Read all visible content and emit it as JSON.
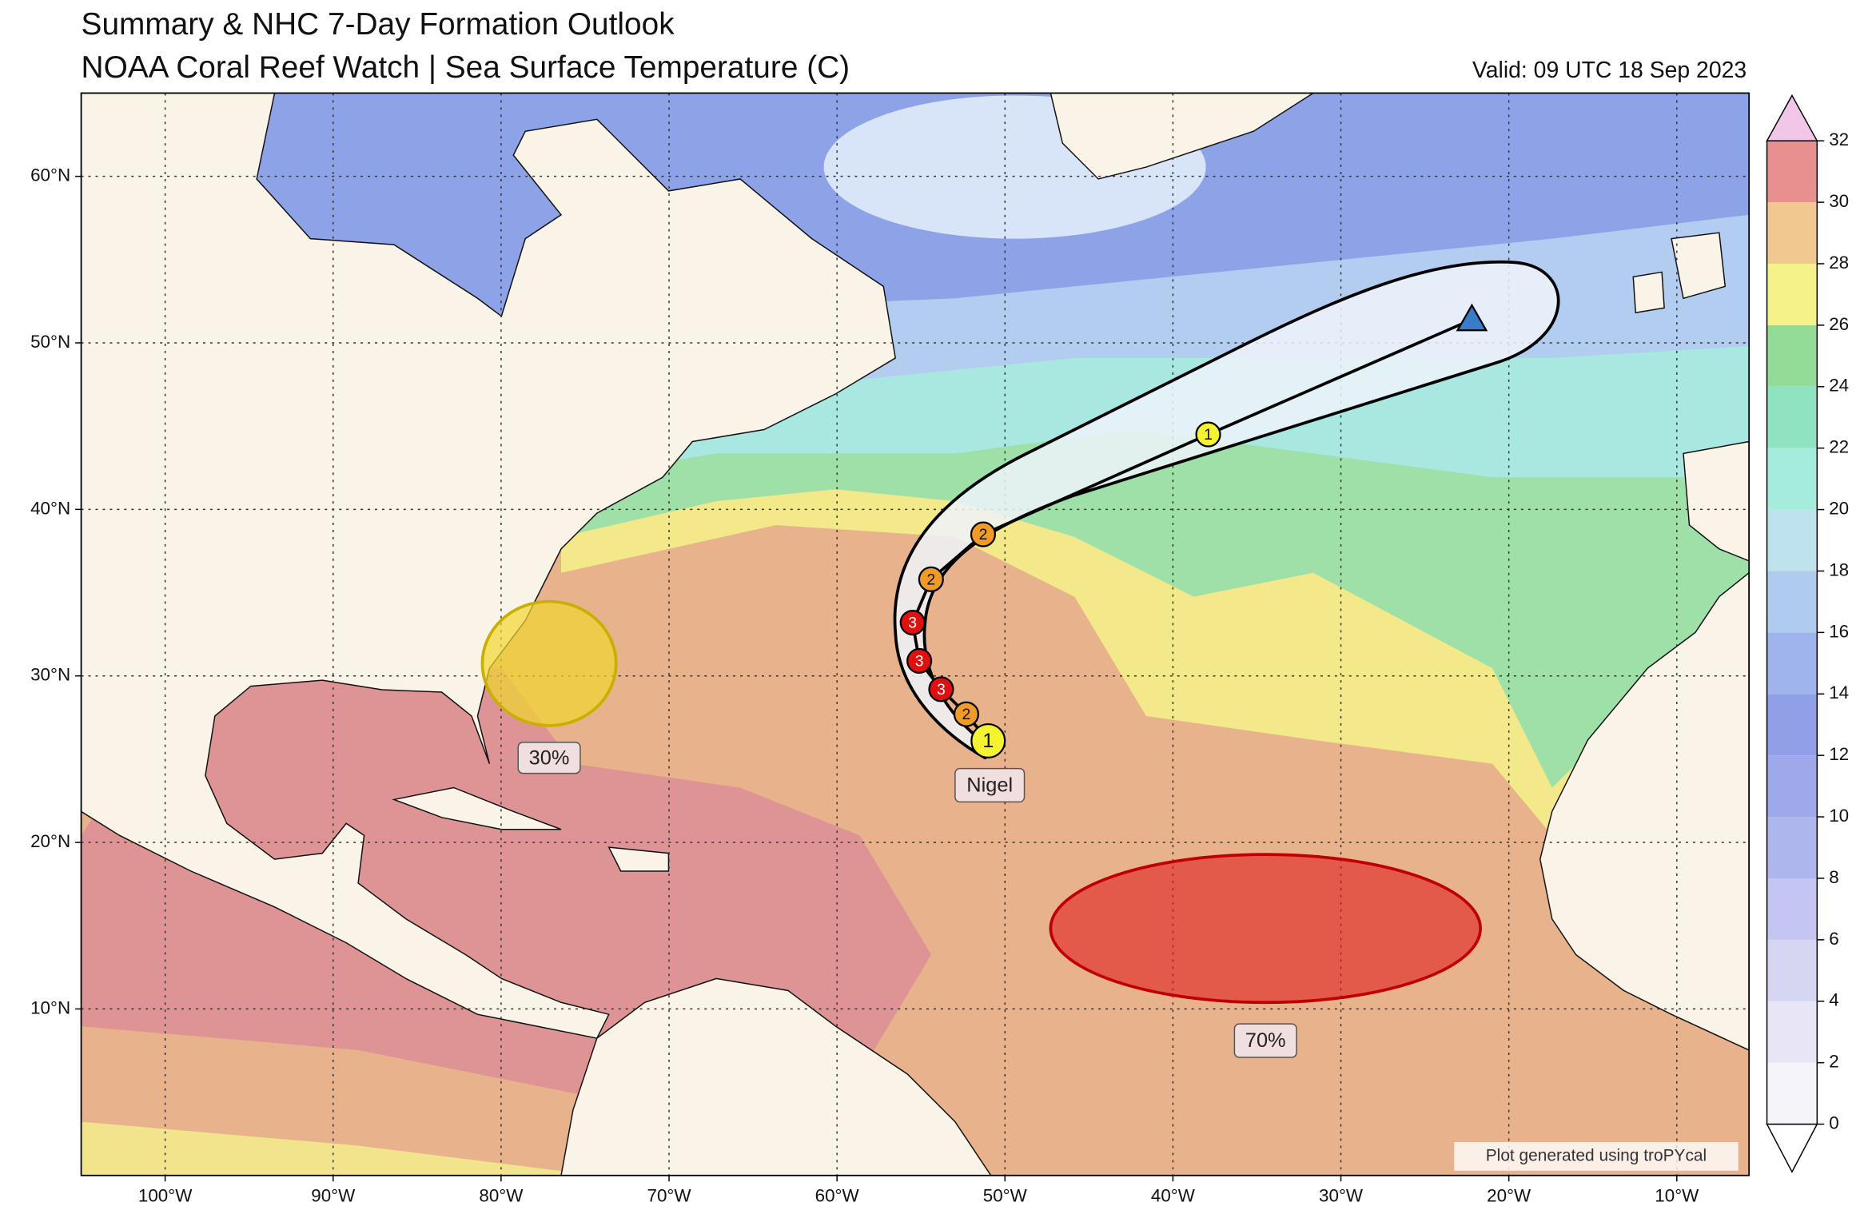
{
  "header": {
    "title": "Summary & NHC 7-Day Formation Outlook",
    "subtitle": "NOAA Coral Reef Watch | Sea Surface Temperature (C)",
    "valid": "Valid: 09 UTC 18 Sep 2023"
  },
  "map": {
    "xlim": [
      -105,
      -5.7
    ],
    "ylim": [
      0,
      65
    ],
    "xticks": [
      {
        "value": -100,
        "label": "100°W"
      },
      {
        "value": -90,
        "label": "90°W"
      },
      {
        "value": -80,
        "label": "80°W"
      },
      {
        "value": -70,
        "label": "70°W"
      },
      {
        "value": -60,
        "label": "60°W"
      },
      {
        "value": -50,
        "label": "50°W"
      },
      {
        "value": -40,
        "label": "40°W"
      },
      {
        "value": -30,
        "label": "30°W"
      },
      {
        "value": -20,
        "label": "20°W"
      },
      {
        "value": -10,
        "label": "10°W"
      }
    ],
    "yticks": [
      {
        "value": 10,
        "label": "10°N"
      },
      {
        "value": 20,
        "label": "20°N"
      },
      {
        "value": 30,
        "label": "30°N"
      },
      {
        "value": 40,
        "label": "40°N"
      },
      {
        "value": 50,
        "label": "50°N"
      },
      {
        "value": 60,
        "label": "60°N"
      }
    ],
    "grid": true
  },
  "storm": {
    "name": "Nigel",
    "points": [
      {
        "lon": -51.0,
        "lat": 26.1,
        "label": "1",
        "color": "#f5f232"
      },
      {
        "lon": -52.3,
        "lat": 27.7,
        "label": "2",
        "color": "#f09a28"
      },
      {
        "lon": -53.8,
        "lat": 29.2,
        "label": "3",
        "color": "#e01010"
      },
      {
        "lon": -55.1,
        "lat": 30.9,
        "label": "3",
        "color": "#e01010"
      },
      {
        "lon": -55.5,
        "lat": 33.2,
        "label": "3",
        "color": "#e01010"
      },
      {
        "lon": -54.4,
        "lat": 35.8,
        "label": "2",
        "color": "#f09a28"
      },
      {
        "lon": -51.3,
        "lat": 38.5,
        "label": "2",
        "color": "#f09a28"
      },
      {
        "lon": -37.9,
        "lat": 44.5,
        "label": "1",
        "color": "#f5f232"
      },
      {
        "lon": -22.2,
        "lat": 51.4,
        "symbol": "triangle",
        "color": "#3a7cc8"
      }
    ]
  },
  "outlooks": [
    {
      "label": "30%",
      "color": "#f2d531"
    },
    {
      "label": "70%",
      "color": "#e02020"
    }
  ],
  "colorbar": {
    "range": [
      0,
      32
    ],
    "ticks": [
      0,
      2,
      4,
      6,
      8,
      10,
      12,
      14,
      16,
      18,
      20,
      22,
      24,
      26,
      28,
      30,
      32
    ],
    "colors": [
      "#f6f4fb",
      "#e8e6f6",
      "#d6d6f2",
      "#c2c6f0",
      "#aeb6ee",
      "#9ea8ea",
      "#8fa0e8",
      "#9fb4ec",
      "#afcbee",
      "#bfe3ee",
      "#a6ecdc",
      "#8fe3c0",
      "#93dc98",
      "#f6f28a",
      "#f0c890",
      "#e89090"
    ]
  },
  "credit": "Plot generated using troPYcal"
}
